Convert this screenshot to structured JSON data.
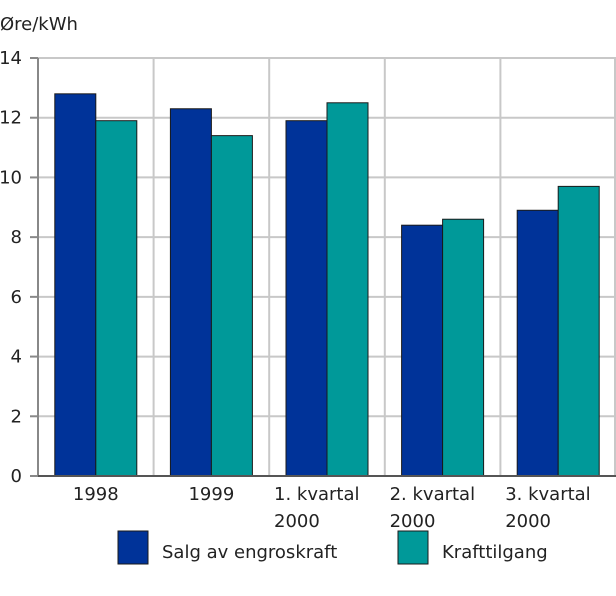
{
  "chart_data": {
    "type": "bar",
    "ylabel": "Øre/kWh",
    "ylim": [
      0,
      14
    ],
    "yticks": [
      0,
      2,
      4,
      6,
      8,
      10,
      12,
      14
    ],
    "grid": true,
    "legend_position": "bottom",
    "categories": [
      [
        "1998"
      ],
      [
        "1999"
      ],
      [
        "1. kvartal",
        "2000"
      ],
      [
        "2. kvartal",
        "2000"
      ],
      [
        "3. kvartal",
        "2000"
      ]
    ],
    "series": [
      {
        "name": "Salg av engroskraft",
        "color": "#003399",
        "values": [
          12.8,
          12.3,
          11.9,
          8.4,
          8.9
        ]
      },
      {
        "name": "Krafttilgang",
        "color": "#009999",
        "values": [
          11.9,
          11.4,
          12.5,
          8.6,
          9.7
        ]
      }
    ]
  }
}
